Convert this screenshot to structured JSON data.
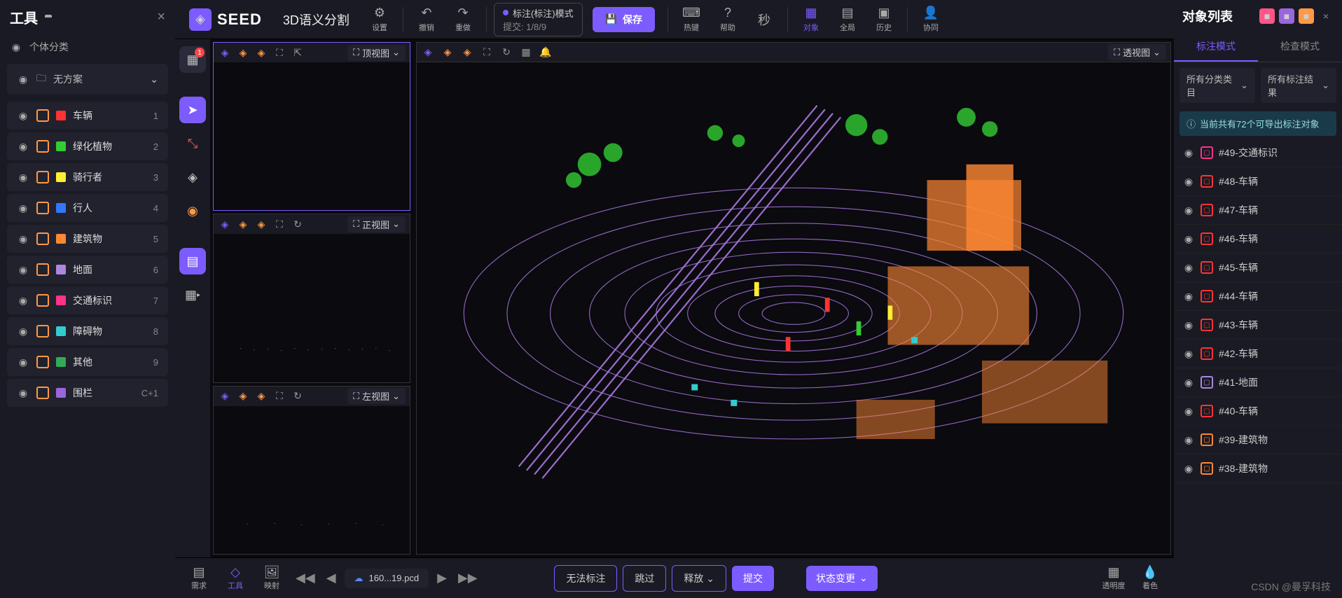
{
  "left": {
    "title": "工具",
    "subtitle": "个体分类",
    "scheme_placeholder": "无方案",
    "categories": [
      {
        "name": "车辆",
        "color": "#ff3333",
        "key": "1",
        "badge": "#ff9944"
      },
      {
        "name": "绿化植物",
        "color": "#33cc33",
        "key": "2",
        "badge": "#ff9944"
      },
      {
        "name": "骑行者",
        "color": "#ffee33",
        "key": "3",
        "badge": "#ff9944"
      },
      {
        "name": "行人",
        "color": "#3377ff",
        "key": "4",
        "badge": "#ff9944"
      },
      {
        "name": "建筑物",
        "color": "#ff8833",
        "key": "5",
        "badge": "#ff9944"
      },
      {
        "name": "地面",
        "color": "#aa88dd",
        "key": "6",
        "badge": "#ff9944"
      },
      {
        "name": "交通标识",
        "color": "#ff3388",
        "key": "7",
        "badge": "#ff9944"
      },
      {
        "name": "障碍物",
        "color": "#33cccc",
        "key": "8",
        "badge": "#ff9944"
      },
      {
        "name": "其他",
        "color": "#33aa55",
        "key": "9",
        "badge": "#ff9944"
      },
      {
        "name": "围栏",
        "color": "#9966dd",
        "key": "C+1",
        "badge": "#ff9944"
      }
    ]
  },
  "top": {
    "logo": "SEED",
    "task": "3D语义分割",
    "settings": "设置",
    "undo": "撤销",
    "redo": "重做",
    "submit_label": "提交:",
    "submit_count": "1/8/9",
    "mode_label": "标注(标注)模式",
    "save": "保存",
    "hotkey": "热键",
    "help": "帮助",
    "object": "对象",
    "global": "全局",
    "history": "历史",
    "collab": "协同"
  },
  "views": {
    "top_view": "顶视图",
    "front_view": "正视图",
    "left_view": "左视图",
    "perspective": "透视图"
  },
  "rail": {
    "badge_count": "1"
  },
  "bottom": {
    "demand": "需求",
    "tool": "工具",
    "mapping": "映射",
    "filename": "160...19.pcd",
    "cannot_annotate": "无法标注",
    "skip": "跳过",
    "release": "释放",
    "submit": "提交",
    "status_change": "状态变更",
    "opacity": "透明度",
    "coloring": "着色"
  },
  "right": {
    "title": "对象列表",
    "tab_annotate": "标注模式",
    "tab_inspect": "检查模式",
    "filter_category": "所有分类类目",
    "filter_result": "所有标注结果",
    "notice": "当前共有72个可导出标注对象",
    "objects": [
      {
        "id": "#49-交通标识",
        "color": "#ff3388"
      },
      {
        "id": "#48-车辆",
        "color": "#ff3333"
      },
      {
        "id": "#47-车辆",
        "color": "#ff3333"
      },
      {
        "id": "#46-车辆",
        "color": "#ff3333"
      },
      {
        "id": "#45-车辆",
        "color": "#ff3333"
      },
      {
        "id": "#44-车辆",
        "color": "#ff3333"
      },
      {
        "id": "#43-车辆",
        "color": "#ff3333"
      },
      {
        "id": "#42-车辆",
        "color": "#ff3333"
      },
      {
        "id": "#41-地面",
        "color": "#aa88dd"
      },
      {
        "id": "#40-车辆",
        "color": "#ff3333"
      },
      {
        "id": "#39-建筑物",
        "color": "#ff8833"
      },
      {
        "id": "#38-建筑物",
        "color": "#ff8833"
      }
    ]
  },
  "watermark": "CSDN @曼孚科技",
  "pointcloud": {
    "background": "#0a0a0f",
    "colors": {
      "ground": "#aa77dd",
      "building": "#ff8833",
      "vegetation": "#33cc33",
      "vehicle": "#ff3333",
      "cyan": "#33cccc",
      "yellow": "#ffee33"
    }
  }
}
